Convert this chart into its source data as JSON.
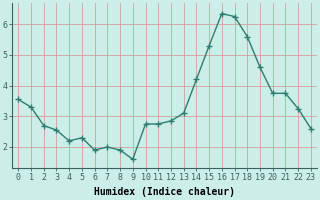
{
  "x": [
    0,
    1,
    2,
    3,
    4,
    5,
    6,
    7,
    8,
    9,
    10,
    11,
    12,
    13,
    14,
    15,
    16,
    17,
    18,
    19,
    20,
    21,
    22,
    23
  ],
  "y": [
    3.55,
    3.3,
    2.7,
    2.55,
    2.2,
    2.3,
    1.9,
    2.0,
    1.9,
    1.6,
    2.75,
    2.75,
    2.85,
    3.1,
    4.2,
    5.3,
    6.35,
    6.25,
    5.6,
    4.6,
    3.75,
    3.75,
    3.25,
    2.6
  ],
  "line_color": "#2e7d6e",
  "marker": "+",
  "markersize": 4,
  "markeredgewidth": 1.0,
  "linewidth": 1.0,
  "background_color": "#cceee8",
  "grid_color": "#d4a0a0",
  "xlabel": "Humidex (Indice chaleur)",
  "xlabel_fontsize": 7,
  "ylabel_ticks": [
    2,
    3,
    4,
    5,
    6
  ],
  "xtick_labels": [
    "0",
    "1",
    "2",
    "3",
    "4",
    "5",
    "6",
    "7",
    "8",
    "9",
    "10",
    "11",
    "12",
    "13",
    "14",
    "15",
    "16",
    "17",
    "18",
    "19",
    "20",
    "21",
    "22",
    "23"
  ],
  "ylim": [
    1.3,
    6.7
  ],
  "xlim": [
    -0.5,
    23.5
  ],
  "tick_fontsize": 6,
  "axis_color": "#3a6060"
}
